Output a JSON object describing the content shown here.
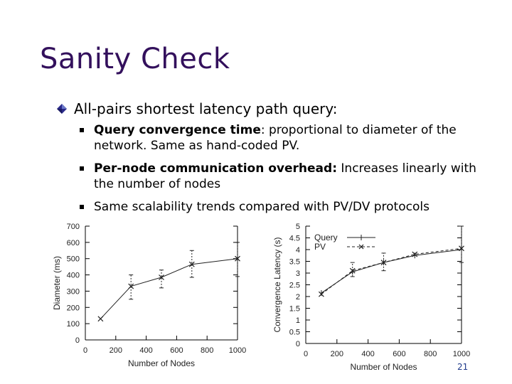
{
  "slide": {
    "title": "Sanity Check",
    "bullet": "All-pairs shortest latency path query:",
    "sub1_bold": "Query convergence time",
    "sub1_rest": ": proportional to diameter of the network. Same as hand-coded PV.",
    "sub2_bold": "Per-node communication overhead:",
    "sub2_rest": " Increases linearly with the number of nodes",
    "sub3": "Same scalability trends compared with PV/DV protocols",
    "page_number": "21"
  },
  "chart_data": [
    {
      "type": "line",
      "xlabel": "Number of Nodes",
      "ylabel": "Diameter (ms)",
      "xlim": [
        0,
        1000
      ],
      "ylim": [
        0,
        700
      ],
      "xticks": [
        0,
        200,
        400,
        600,
        800,
        1000
      ],
      "yticks": [
        0,
        100,
        200,
        300,
        400,
        500,
        600,
        700
      ],
      "series": [
        {
          "x": [
            100,
            300,
            500,
            700,
            1000
          ],
          "y": [
            130,
            330,
            385,
            465,
            500
          ],
          "err_low": [
            130,
            250,
            320,
            385,
            390
          ],
          "err_high": [
            130,
            400,
            430,
            550,
            600
          ]
        }
      ]
    },
    {
      "type": "line",
      "xlabel": "Number of Nodes",
      "ylabel": "Convergence Latency (s)",
      "xlim": [
        0,
        1000
      ],
      "ylim": [
        0,
        5
      ],
      "xticks": [
        0,
        200,
        400,
        600,
        800,
        1000
      ],
      "yticks": [
        0,
        0.5,
        1,
        1.5,
        2,
        2.5,
        3,
        3.5,
        4,
        4.5,
        5
      ],
      "legend": "top-left",
      "series": [
        {
          "name": "Query",
          "x": [
            100,
            300,
            500,
            700,
            1000
          ],
          "y": [
            2.15,
            3.05,
            3.45,
            3.75,
            4.0
          ]
        },
        {
          "name": "PV",
          "x": [
            100,
            300,
            500,
            700,
            1000
          ],
          "y": [
            2.1,
            3.1,
            3.45,
            3.8,
            4.05
          ],
          "err_low": [
            2.1,
            2.85,
            3.1,
            3.8,
            3.45
          ],
          "err_high": [
            2.1,
            3.45,
            3.85,
            3.8,
            5.0
          ]
        }
      ]
    }
  ]
}
